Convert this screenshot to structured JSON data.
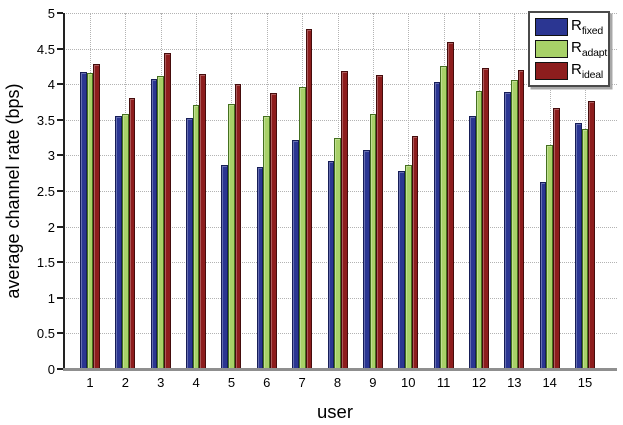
{
  "chart_data": {
    "type": "bar",
    "title": "",
    "xlabel": "user",
    "ylabel": "average channel rate (bps)",
    "categories": [
      "1",
      "2",
      "3",
      "4",
      "5",
      "6",
      "7",
      "8",
      "9",
      "10",
      "11",
      "12",
      "13",
      "14",
      "15"
    ],
    "series": [
      {
        "name": "R_fixed",
        "label_base": "R",
        "label_sub": "fixed",
        "color": "#2b3692",
        "edge_color": "#161d57",
        "values": [
          4.17,
          3.56,
          4.08,
          3.52,
          2.87,
          2.84,
          3.21,
          2.92,
          3.08,
          2.78,
          4.03,
          3.56,
          3.89,
          2.62,
          3.46
        ]
      },
      {
        "name": "R_adapt",
        "label_base": "R",
        "label_sub": "adapt",
        "color": "#a8d168",
        "edge_color": "#44701f",
        "values": [
          4.16,
          3.58,
          4.12,
          3.71,
          3.72,
          3.55,
          3.96,
          3.24,
          3.58,
          2.86,
          4.26,
          3.91,
          4.06,
          3.15,
          3.37
        ]
      },
      {
        "name": "R_ideal",
        "label_base": "R",
        "label_sub": "ideal",
        "color": "#8d1d1d",
        "edge_color": "#450c0c",
        "values": [
          4.29,
          3.8,
          4.44,
          4.15,
          4.0,
          3.87,
          4.77,
          4.19,
          4.13,
          3.27,
          4.59,
          4.23,
          4.2,
          3.67,
          3.77
        ]
      }
    ],
    "ylim": [
      0,
      5
    ],
    "ytick_step": 0.5,
    "yticks": [
      "0",
      "0.5",
      "1",
      "1.5",
      "2",
      "2.5",
      "3",
      "3.5",
      "4",
      "4.5",
      "5"
    ],
    "grid": true,
    "legend_position": "top-right",
    "colors": {
      "axis_spine": "#222222",
      "axis_baseline": "#8f8f8f",
      "gridline": "#b3b3b3",
      "background": "#ffffff"
    }
  }
}
